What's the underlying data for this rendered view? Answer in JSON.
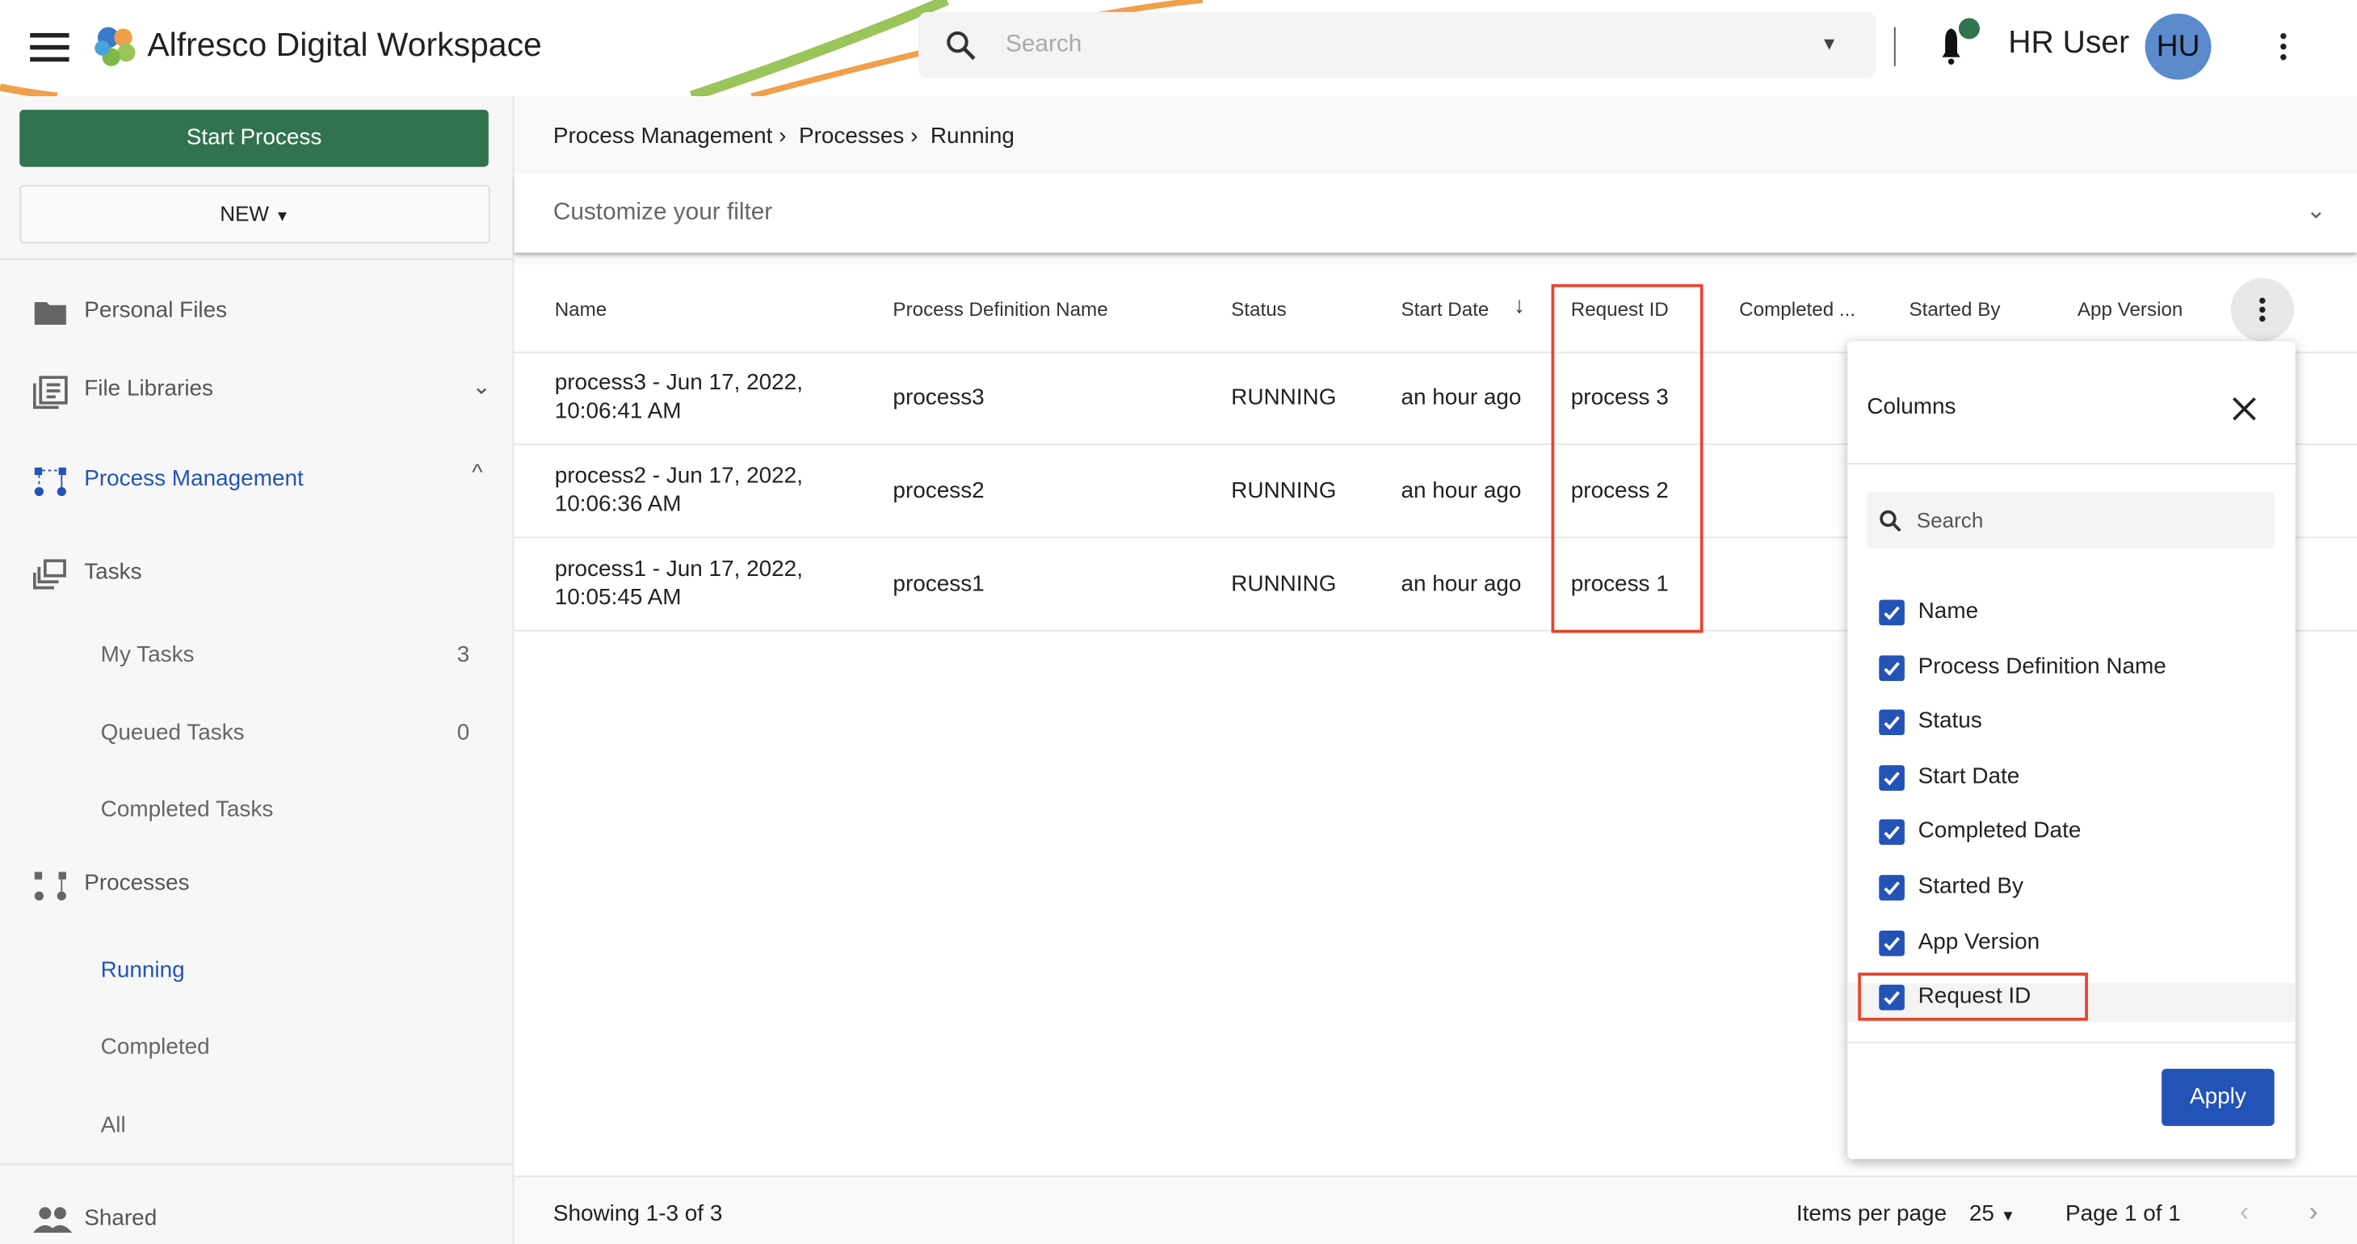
{
  "header": {
    "app_title": "Alfresco Digital Workspace",
    "search_placeholder": "Search",
    "user_name": "HR User",
    "user_initials": "HU",
    "accent": "#32734f"
  },
  "sidebar": {
    "start_process": "Start Process",
    "new_button": "NEW",
    "items": [
      {
        "label": "Personal Files",
        "icon": "folder-icon"
      },
      {
        "label": "File Libraries",
        "icon": "library-icon"
      },
      {
        "label": "Process Management",
        "icon": "process-icon"
      },
      {
        "label": "Tasks",
        "icon": "tasks-icon"
      },
      {
        "label": "Processes",
        "icon": "process-icon"
      },
      {
        "label": "Shared",
        "icon": "people-icon"
      }
    ],
    "task_items": [
      {
        "label": "My Tasks",
        "count": "3"
      },
      {
        "label": "Queued Tasks",
        "count": "0"
      },
      {
        "label": "Completed Tasks"
      }
    ],
    "process_items": [
      {
        "label": "Running"
      },
      {
        "label": "Completed"
      },
      {
        "label": "All"
      }
    ]
  },
  "breadcrumb": [
    "Process Management",
    "Processes",
    "Running"
  ],
  "filter": {
    "label": "Customize your filter"
  },
  "table": {
    "columns": [
      "Name",
      "Process Definition Name",
      "Status",
      "Start Date",
      "Request ID",
      "Completed ...",
      "Started By",
      "App Version"
    ],
    "rows": [
      {
        "name1": "process3 - Jun 17, 2022,",
        "name2": "10:06:41 AM",
        "def": "process3",
        "status": "RUNNING",
        "start": "an hour ago",
        "req": "process 3"
      },
      {
        "name1": "process2 - Jun 17, 2022,",
        "name2": "10:06:36 AM",
        "def": "process2",
        "status": "RUNNING",
        "start": "an hour ago",
        "req": "process 2"
      },
      {
        "name1": "process1 - Jun 17, 2022,",
        "name2": "10:05:45 AM",
        "def": "process1",
        "status": "RUNNING",
        "start": "an hour ago",
        "req": "process 1"
      }
    ]
  },
  "footer": {
    "showing": "Showing 1-3 of 3",
    "items_per_page_label": "Items per page",
    "items_per_page": "25",
    "page": "Page 1 of 1"
  },
  "columns_panel": {
    "title": "Columns",
    "search_placeholder": "Search",
    "apply": "Apply",
    "options": [
      {
        "label": "Name",
        "checked": true
      },
      {
        "label": "Process Definition Name",
        "checked": true
      },
      {
        "label": "Status",
        "checked": true
      },
      {
        "label": "Start Date",
        "checked": true
      },
      {
        "label": "Completed Date",
        "checked": true
      },
      {
        "label": "Started By",
        "checked": true
      },
      {
        "label": "App Version",
        "checked": true
      },
      {
        "label": "Request ID",
        "checked": true
      }
    ]
  }
}
